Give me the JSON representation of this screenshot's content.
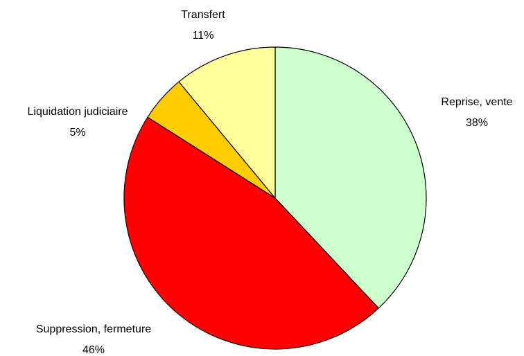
{
  "chart_data": {
    "type": "pie",
    "categories": [
      "Reprise, vente",
      "Suppression, fermeture",
      "Liquidation judiciaire",
      "Transfert"
    ],
    "values": [
      38,
      46,
      5,
      11
    ],
    "value_labels": [
      "38%",
      "46%",
      "5%",
      "11%"
    ],
    "colors": [
      "#ccffcc",
      "#ff0000",
      "#ffcc00",
      "#ffff99"
    ]
  }
}
